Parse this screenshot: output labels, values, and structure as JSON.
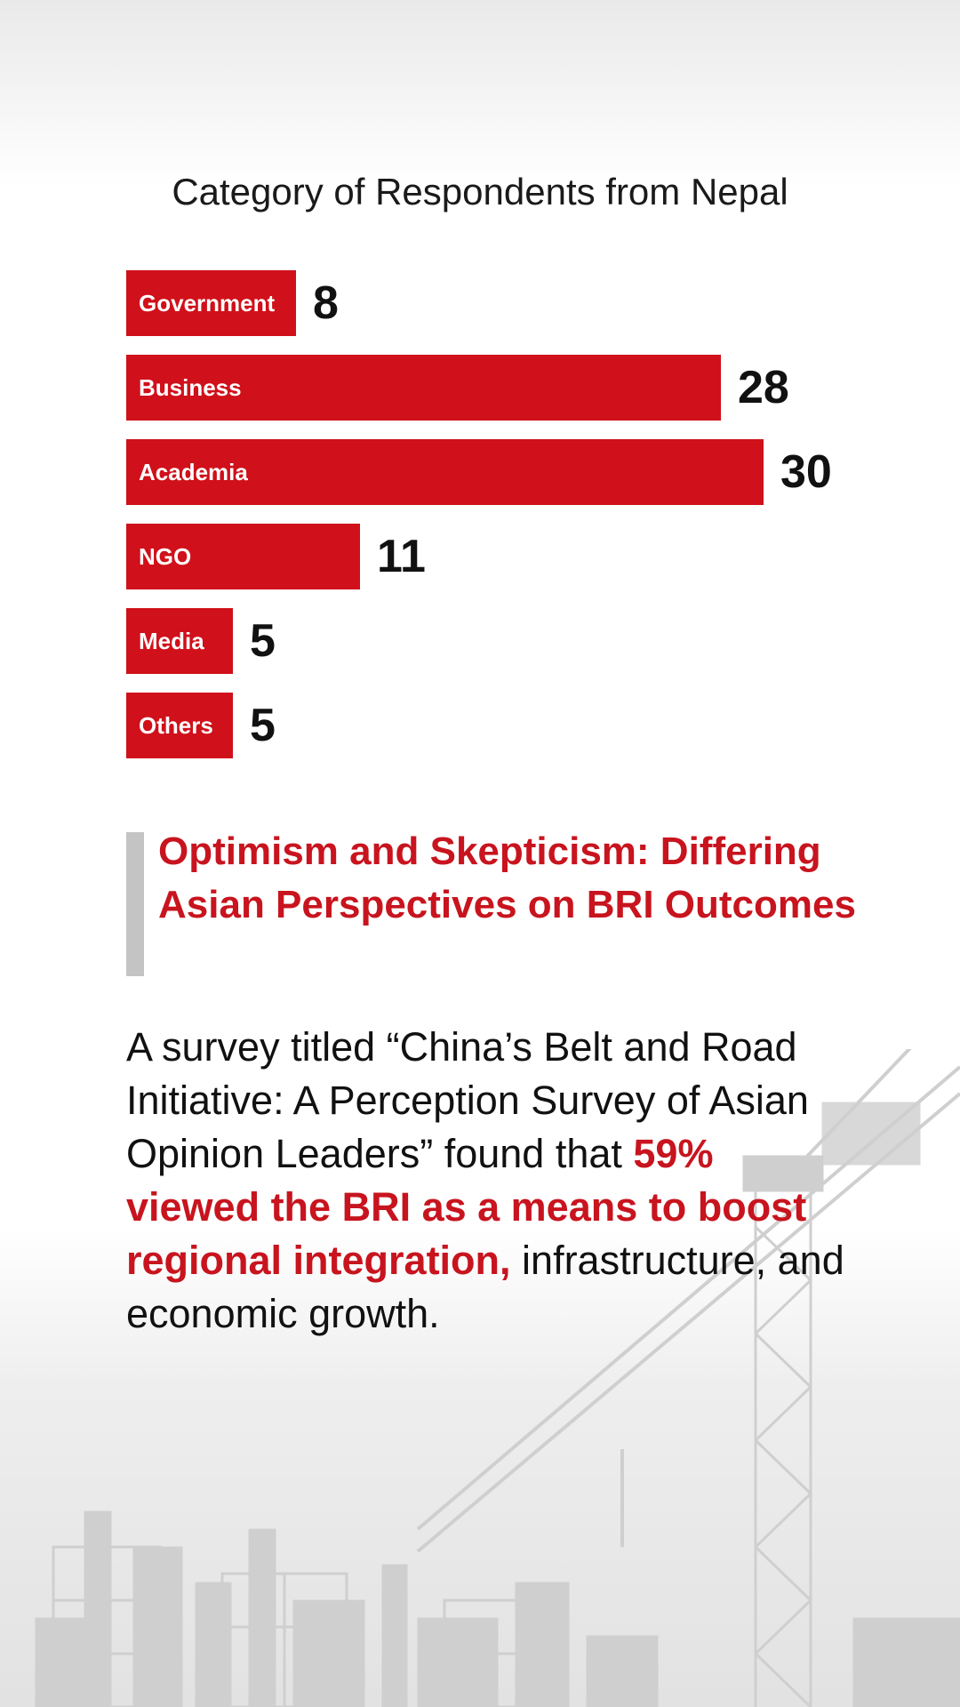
{
  "chart_data": {
    "type": "bar",
    "orientation": "horizontal",
    "title": "Category of Respondents from Nepal",
    "categories": [
      "Government",
      "Business",
      "Academia",
      "NGO",
      "Media",
      "Others"
    ],
    "values": [
      8,
      28,
      30,
      11,
      5,
      5
    ],
    "xlim": [
      0,
      30
    ],
    "grid": false,
    "bar_color": "#d0101a"
  },
  "section": {
    "heading": "Optimism and Skepticism: Differing Asian Perspectives on BRI Outcomes"
  },
  "body": {
    "intro": "A survey titled “China’s Belt and Road Initiative: A Perception Survey of Asian Opinion Leaders” found that ",
    "highlight": "59% viewed the BRI as a means to boost regional integration,",
    "outro": " infrastructure, and economic growth."
  },
  "colors": {
    "accent": "#c8141e",
    "quote_bar": "#c4c4c4"
  },
  "background": {
    "image": "construction-crane-silhouette"
  }
}
